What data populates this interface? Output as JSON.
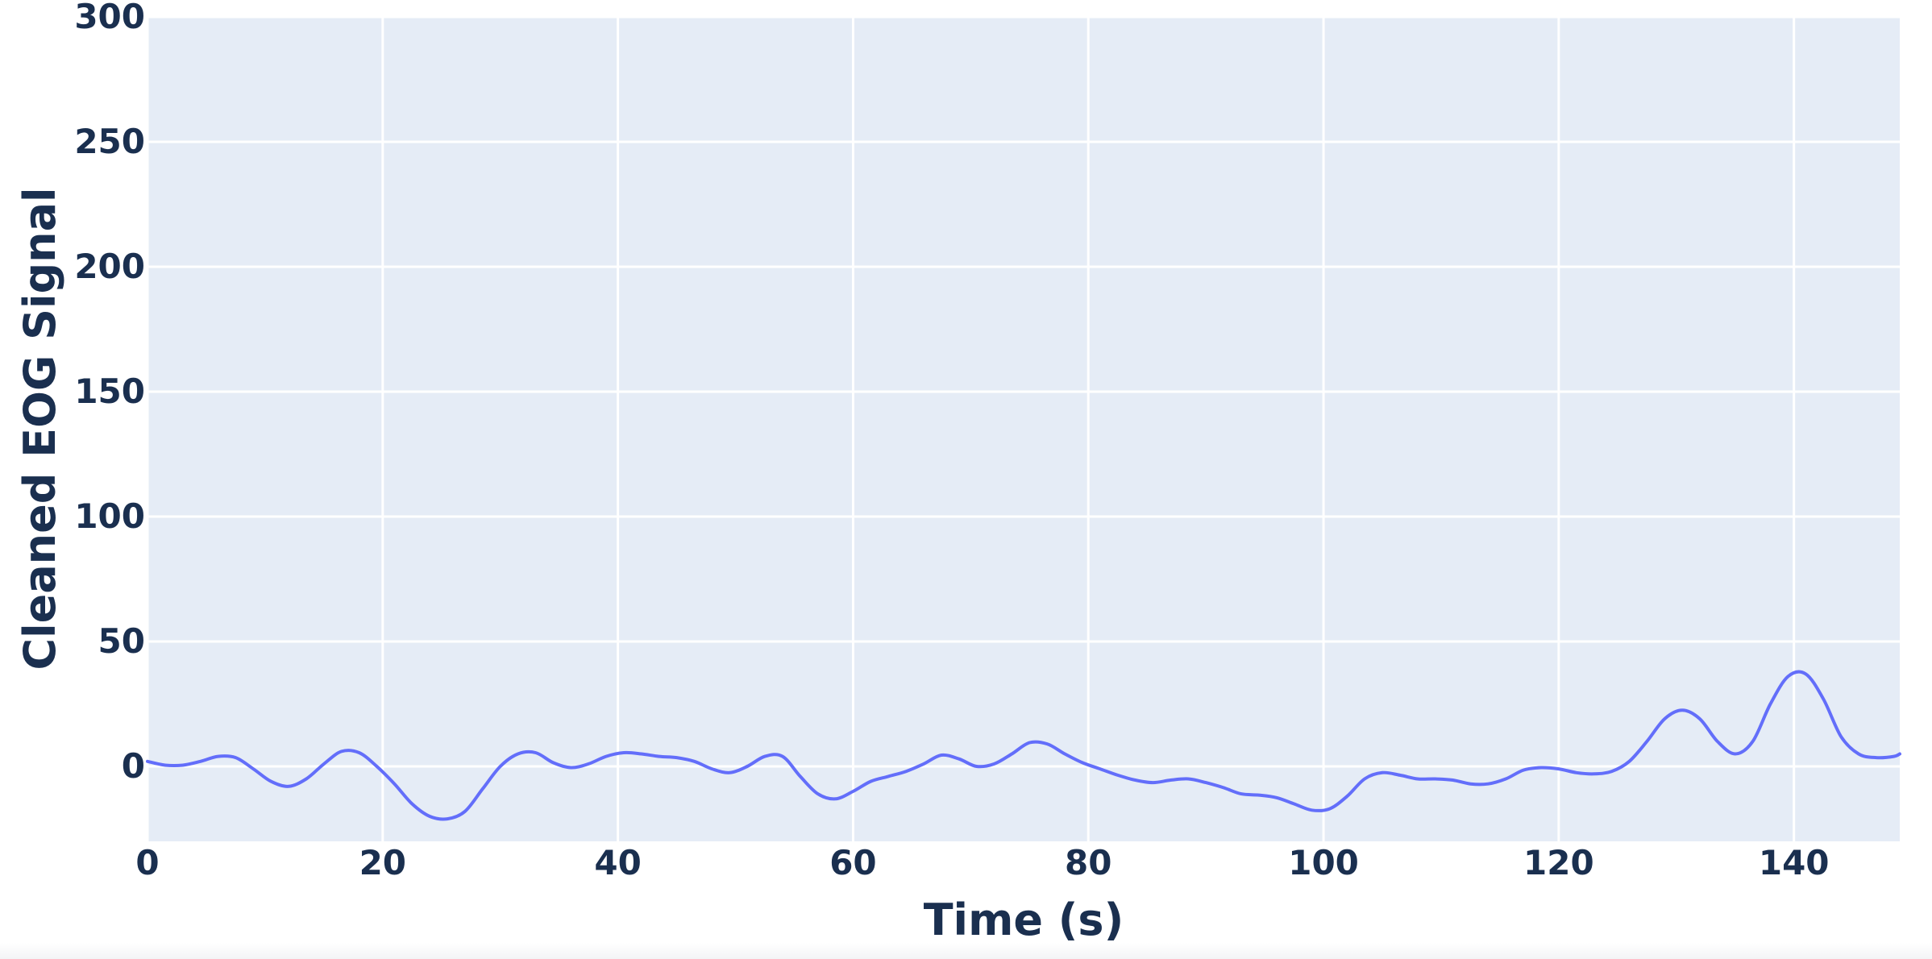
{
  "colors": {
    "plot_background": "#e5ecf6",
    "grid": "#ffffff",
    "line": "#636efa",
    "text": "#1a2f4f"
  },
  "chart_data": {
    "type": "line",
    "xlabel": "Time (s)",
    "ylabel": "Cleaned EOG Signal",
    "xlim": [
      0,
      149
    ],
    "ylim": [
      -30,
      300
    ],
    "x_ticks": [
      0,
      20,
      40,
      60,
      80,
      100,
      120,
      140
    ],
    "y_ticks": [
      0,
      50,
      100,
      150,
      200,
      250,
      300
    ],
    "x_tick_labels": [
      "0",
      "20",
      "40",
      "60",
      "80",
      "100",
      "120",
      "140"
    ],
    "y_tick_labels": [
      "0",
      "50",
      "100",
      "150",
      "200",
      "250",
      "300"
    ],
    "grid": true,
    "legend": "none",
    "series": [
      {
        "x": [
          0,
          1.5,
          3,
          4.5,
          6,
          7.5,
          9,
          10.5,
          12,
          13.5,
          15,
          16.5,
          18,
          19.5,
          21,
          22.5,
          24,
          25.5,
          27,
          28.5,
          30,
          31.5,
          33,
          34.5,
          36,
          37.5,
          39,
          40.5,
          42,
          43.5,
          45,
          46.5,
          48,
          49.5,
          51,
          52.5,
          54,
          55.5,
          57,
          58.5,
          60,
          61.5,
          63,
          64.5,
          66,
          67.5,
          69,
          70.5,
          72,
          73.5,
          75,
          76.5,
          78,
          79.5,
          81,
          82.5,
          84,
          85.5,
          87,
          88.5,
          90,
          91.5,
          93,
          94.5,
          96,
          97.5,
          99,
          100.5,
          102,
          103.5,
          105,
          106.5,
          108,
          109.5,
          111,
          112.5,
          114,
          115.5,
          117,
          118.5,
          120,
          121.5,
          123,
          124.5,
          126,
          127.5,
          129,
          130.5,
          132,
          133.5,
          135,
          136.5,
          138,
          139.5,
          141,
          142.5,
          144,
          145.5,
          147,
          148.5,
          149
        ],
        "y": [
          2,
          0.5,
          0.5,
          2,
          4,
          3.5,
          -1,
          -6,
          -8,
          -5,
          1,
          6,
          5.5,
          0,
          -7,
          -15,
          -20,
          -21,
          -18,
          -9,
          0,
          5,
          5.5,
          1.5,
          -0.5,
          1,
          4,
          5.5,
          5,
          4,
          3.5,
          2,
          -1,
          -2.5,
          0,
          4,
          4,
          -4,
          -11,
          -13,
          -10,
          -6,
          -4,
          -2,
          1,
          4.5,
          3,
          0,
          1,
          5,
          9.5,
          9,
          5,
          1.5,
          -1,
          -3.5,
          -5.5,
          -6.5,
          -5.5,
          -5,
          -6.5,
          -8.5,
          -11,
          -11.5,
          -12.5,
          -15,
          -17.5,
          -17,
          -12,
          -5,
          -2.5,
          -3.5,
          -5,
          -5,
          -5.5,
          -7,
          -7,
          -5,
          -1.5,
          -0.5,
          -1,
          -2.5,
          -3,
          -2,
          2,
          10,
          19,
          22.5,
          19,
          10,
          5,
          10,
          25,
          36,
          37,
          27,
          12,
          5,
          3.5,
          4,
          5
        ]
      }
    ]
  }
}
